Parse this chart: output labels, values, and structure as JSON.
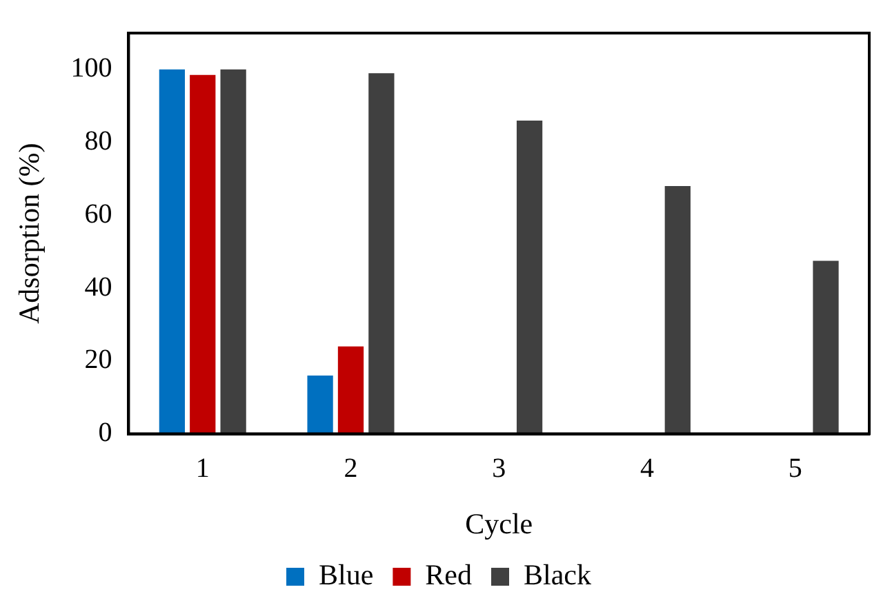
{
  "chart_data": {
    "type": "bar",
    "xlabel": "Cycle",
    "ylabel": "Adsorption (%)",
    "categories": [
      "1",
      "2",
      "3",
      "4",
      "5"
    ],
    "series": [
      {
        "name": "Blue",
        "color": "#0070c0",
        "values": [
          100,
          16,
          null,
          null,
          null
        ]
      },
      {
        "name": "Red",
        "color": "#c00000",
        "values": [
          98.5,
          24,
          null,
          null,
          null
        ]
      },
      {
        "name": "Black",
        "color": "#404040",
        "values": [
          100,
          99,
          86,
          68,
          47.5
        ]
      }
    ],
    "ylim": [
      0,
      110
    ],
    "yticks": [
      0,
      20,
      40,
      60,
      80,
      100
    ],
    "grid": false,
    "legend": "bottom"
  }
}
